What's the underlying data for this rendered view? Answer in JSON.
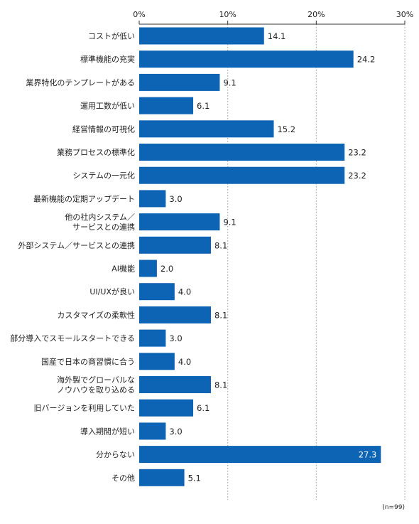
{
  "chart_data": {
    "type": "bar",
    "orientation": "horizontal",
    "title": "",
    "xlabel": "",
    "ylabel": "",
    "unit": "%",
    "xlim": [
      0,
      30
    ],
    "ticks": [
      0,
      10,
      20,
      30
    ],
    "tick_labels": [
      "0%",
      "10%",
      "20%",
      "30%"
    ],
    "grid": true,
    "categories": [
      "コストが低い",
      "標準機能の充実",
      "業界特化のテンプレートがある",
      "運用工数が低い",
      "経営情報の可視化",
      "業務プロセスの標準化",
      "システムの一元化",
      "最新機能の定期アップデート",
      "他の社内システム／\nサービスとの連携",
      "外部システム／サービスとの連携",
      "AI機能",
      "UI/UXが良い",
      "カスタマイズの柔軟性",
      "部分導入でスモールスタートできる",
      "国産で日本の商習慣に合う",
      "海外製でグローバルな\nノウハウを取り込める",
      "旧バージョンを利用していた",
      "導入期間が短い",
      "分からない",
      "その他"
    ],
    "values": [
      14.1,
      24.2,
      9.1,
      6.1,
      15.2,
      23.2,
      23.2,
      3.0,
      9.1,
      8.1,
      2.0,
      4.0,
      8.1,
      3.0,
      4.0,
      8.1,
      6.1,
      3.0,
      27.3,
      5.1
    ],
    "value_labels": [
      "14.1",
      "24.2",
      "9.1",
      "6.1",
      "15.2",
      "23.2",
      "23.2",
      "3.0",
      "9.1",
      "8.1",
      "2.0",
      "4.0",
      "8.1",
      "3.0",
      "4.0",
      "8.1",
      "6.1",
      "3.0",
      "27.3",
      "5.1"
    ],
    "note": "(n=99)",
    "colors": {
      "bar": "#0e64b4",
      "grid": "#9a9a9a",
      "axis": "#333333",
      "text": "#222222"
    }
  }
}
